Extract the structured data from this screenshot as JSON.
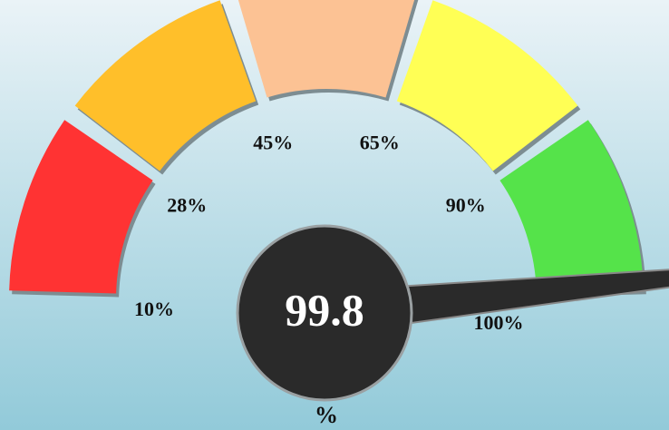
{
  "chart_data": {
    "type": "gauge",
    "value": 99.8,
    "unit": "%",
    "ticks": [
      {
        "value": 10,
        "label": "10%"
      },
      {
        "value": 28,
        "label": "28%"
      },
      {
        "value": 45,
        "label": "45%"
      },
      {
        "value": 65,
        "label": "65%"
      },
      {
        "value": 90,
        "label": "90%"
      },
      {
        "value": 100,
        "label": "100%"
      }
    ],
    "band_colors": [
      "#ff3333",
      "#ffbf2a",
      "#fcc294",
      "#ffff55",
      "#55e34a"
    ],
    "needle_color": "#2a2a2a"
  }
}
